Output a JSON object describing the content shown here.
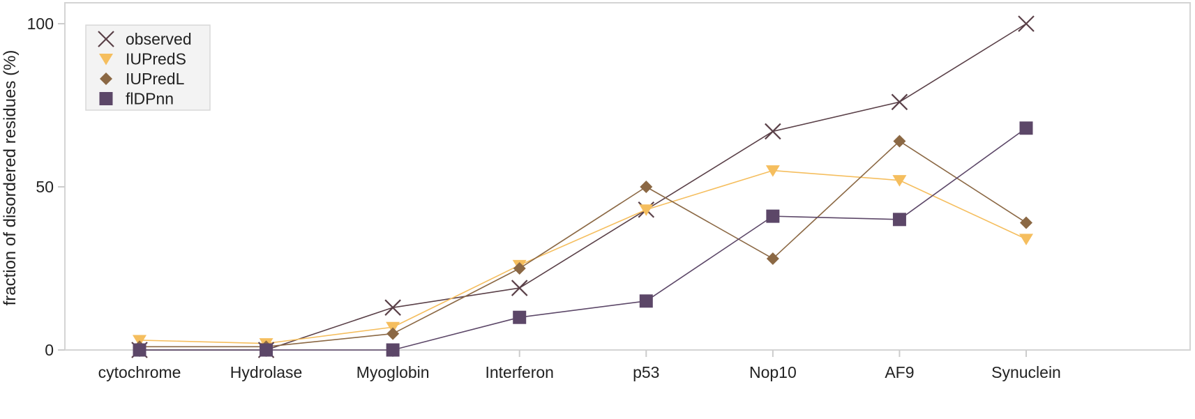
{
  "chart_data": {
    "type": "line",
    "categories": [
      "cytochrome",
      "Hydrolase",
      "Myoglobin",
      "Interferon",
      "p53",
      "Nop10",
      "AF9",
      "Synuclein"
    ],
    "ylabel": "fraction of disordered residues (%)",
    "xlabel": "",
    "ylim": [
      0,
      100
    ],
    "yticks": [
      0,
      50,
      100
    ],
    "grid": false,
    "legend_position": "top-left",
    "series": [
      {
        "name": "observed",
        "marker": "x",
        "color": "#5a4048",
        "values": [
          0,
          0,
          13,
          19,
          43,
          67,
          76,
          100
        ]
      },
      {
        "name": "IUPredS",
        "marker": "triangle-down",
        "color": "#f5be5e",
        "values": [
          3,
          2,
          7,
          26,
          43,
          55,
          52,
          34
        ]
      },
      {
        "name": "IUPredL",
        "marker": "diamond",
        "color": "#8b6844",
        "values": [
          1,
          1,
          5,
          25,
          50,
          28,
          64,
          39
        ]
      },
      {
        "name": "flDPnn",
        "marker": "square",
        "color": "#5c4768",
        "values": [
          0,
          0,
          0,
          10,
          15,
          41,
          40,
          68
        ]
      }
    ]
  }
}
